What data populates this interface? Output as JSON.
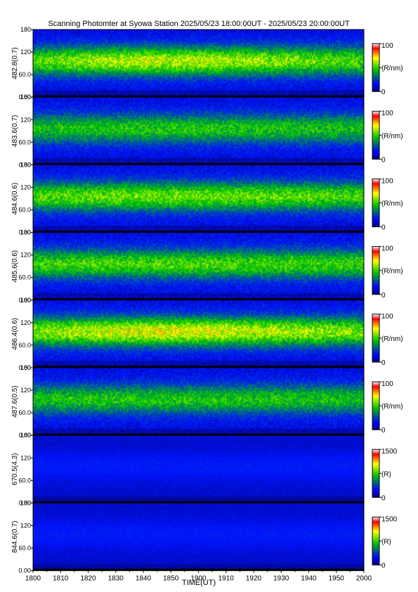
{
  "chart_data": {
    "type": "heatmap",
    "title": "Scanning Photomter at Syowa Station 2025/05/23 18:00:00UT - 2025/05/23 20:00:00UT",
    "xlabel": "TIME(UT)",
    "xlim": [
      "1800",
      "2000"
    ],
    "x_ticks": [
      "1800",
      "1810",
      "1820",
      "1830",
      "1840",
      "1850",
      "1900",
      "1910",
      "1920",
      "1930",
      "1940",
      "1950",
      "2000"
    ],
    "y_ticks": [
      "0.00",
      "60.0",
      "120",
      "180"
    ],
    "ylim": [
      0,
      180
    ],
    "panels": [
      {
        "ylabel": "482.8(0.7)",
        "colorbar": {
          "max_label": "100",
          "min_label": "0",
          "unit": "(R/nm)",
          "max": 100
        },
        "level": 0.42,
        "trend": 0.25
      },
      {
        "ylabel": "483.6(0.7)",
        "colorbar": {
          "max_label": "100",
          "min_label": "0",
          "unit": "(R/nm)",
          "max": 100
        },
        "level": 0.33,
        "trend": 0.05
      },
      {
        "ylabel": "484.6(0.6)",
        "colorbar": {
          "max_label": "100",
          "min_label": "0",
          "unit": "(R/nm)",
          "max": 100
        },
        "level": 0.4,
        "trend": 0.1
      },
      {
        "ylabel": "485.6(0.6)",
        "colorbar": {
          "max_label": "100",
          "min_label": "0",
          "unit": "(R/nm)",
          "max": 100
        },
        "level": 0.38,
        "trend": 0.05
      },
      {
        "ylabel": "486.4(0.6)",
        "colorbar": {
          "max_label": "100",
          "min_label": "0",
          "unit": "(R/nm)",
          "max": 100
        },
        "level": 0.47,
        "trend": 0.2
      },
      {
        "ylabel": "487.6(0.5)",
        "colorbar": {
          "max_label": "100",
          "min_label": "0",
          "unit": "(R/nm)",
          "max": 100
        },
        "level": 0.33,
        "trend": 0.05
      },
      {
        "ylabel": "670.5(4.3)",
        "colorbar": {
          "max_label": "1500",
          "min_label": "0",
          "unit": "(R)",
          "max": 1500
        },
        "level": 0.1,
        "trend": 0.0
      },
      {
        "ylabel": "844.6(0.7)",
        "colorbar": {
          "max_label": "1500",
          "min_label": "0",
          "unit": "(R)",
          "max": 1500
        },
        "level": 0.09,
        "trend": 0.0
      }
    ],
    "colormap": [
      "#000080",
      "#0000ff",
      "#00c000",
      "#ffff00",
      "#ff0000",
      "#ffffff"
    ]
  }
}
